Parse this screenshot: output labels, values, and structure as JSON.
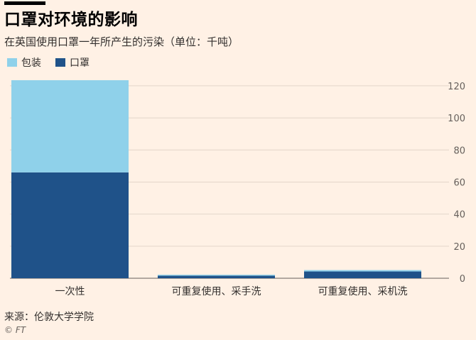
{
  "header": {
    "title": "口罩对环境的影响",
    "subtitle": "在英国使用口罩一年所产生的污染（单位：千吨）"
  },
  "footer": {
    "source": "来源：伦敦大学学院",
    "credit": "© FT"
  },
  "colors": {
    "background": "#fff1e5",
    "packaging": "#8fd1ea",
    "mask": "#1f5289",
    "grid": "#e3d6ca",
    "text": "#33302e"
  },
  "chart_data": {
    "type": "bar",
    "stacked": true,
    "categories": [
      "一次性",
      "可重复使用、采手洗",
      "可重复使用、采机洗"
    ],
    "series": [
      {
        "name": "口罩",
        "values": [
          66,
          1.6,
          4.2
        ],
        "color": "#1f5289"
      },
      {
        "name": "包装",
        "values": [
          57.5,
          0.6,
          0.9
        ],
        "color": "#8fd1ea"
      }
    ],
    "legend_order": [
      "包装",
      "口罩"
    ],
    "yticks": [
      0,
      20,
      40,
      60,
      80,
      100,
      120
    ],
    "ylim": [
      0,
      123.5
    ],
    "y_axis_side": "right",
    "grid": true,
    "legend_position": "top-left"
  }
}
